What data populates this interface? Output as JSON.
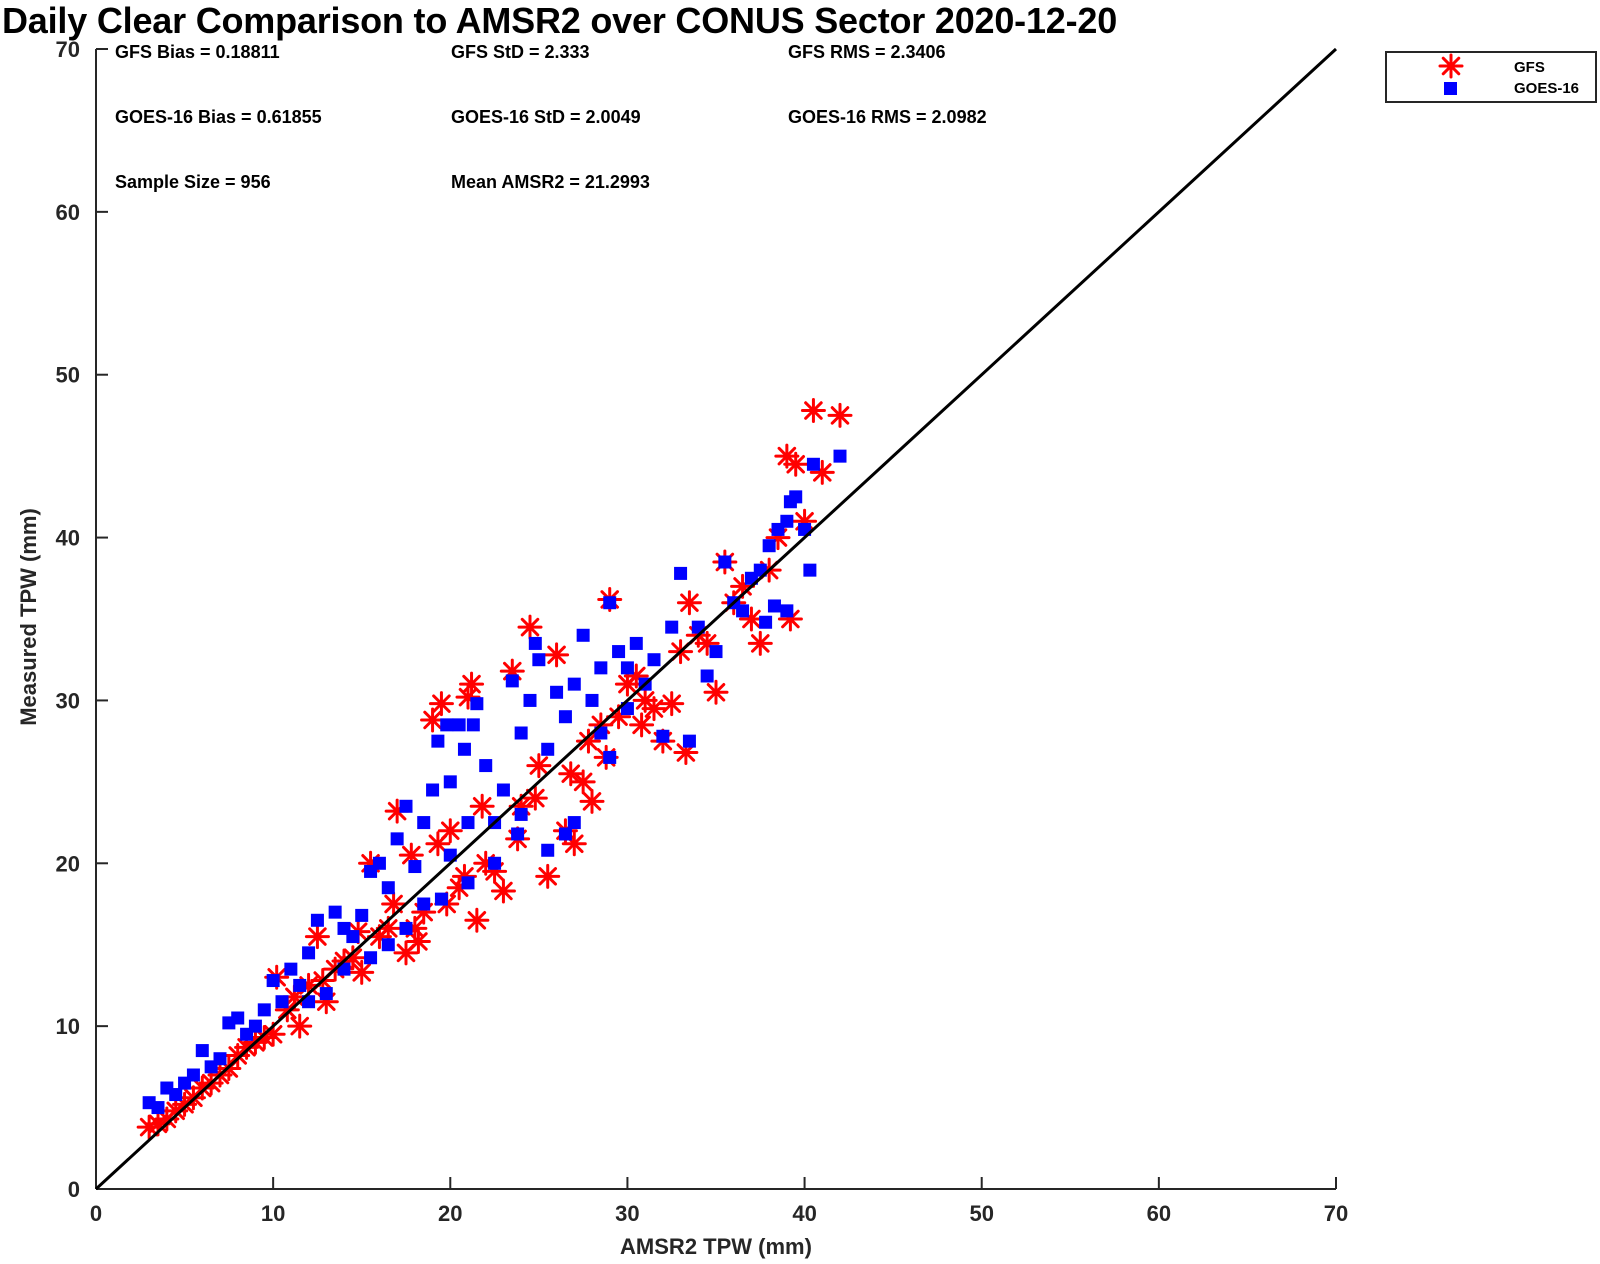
{
  "chart_data": {
    "type": "scatter",
    "title": "Daily Clear Comparison to AMSR2 over CONUS Sector 2020-12-20",
    "xlabel": "AMSR2 TPW (mm)",
    "ylabel": "Measured TPW (mm)",
    "xlim": [
      0,
      70
    ],
    "ylim": [
      0,
      70
    ],
    "xticks": [
      "0",
      "10",
      "20",
      "30",
      "40",
      "50",
      "60",
      "70"
    ],
    "yticks": [
      "0",
      "10",
      "20",
      "30",
      "40",
      "50",
      "60",
      "70"
    ],
    "reference_line": {
      "x": [
        0,
        70
      ],
      "y": [
        0,
        70
      ],
      "color": "#000000"
    },
    "stats": [
      [
        "GFS Bias = 0.18811",
        "GFS StD = 2.333",
        "GFS RMS = 2.3406"
      ],
      [
        "GOES-16 Bias = 0.61855",
        "GOES-16 StD = 2.0049",
        "GOES-16 RMS = 2.0982"
      ],
      [
        "Sample Size = 956",
        "Mean AMSR2 = 21.2993",
        ""
      ]
    ],
    "legend_position": "outside top-right",
    "series": [
      {
        "name": "GFS",
        "marker": "asterisk",
        "color": "#ff0000",
        "points": [
          [
            3.0,
            3.8
          ],
          [
            3.5,
            4.0
          ],
          [
            4.0,
            4.3
          ],
          [
            4.5,
            4.8
          ],
          [
            5.0,
            5.2
          ],
          [
            5.5,
            5.6
          ],
          [
            6.0,
            6.2
          ],
          [
            6.5,
            6.5
          ],
          [
            7.0,
            7.0
          ],
          [
            7.5,
            7.4
          ],
          [
            8.0,
            8.2
          ],
          [
            8.5,
            8.7
          ],
          [
            9.0,
            9.0
          ],
          [
            9.5,
            9.3
          ],
          [
            10.0,
            9.5
          ],
          [
            10.2,
            13.0
          ],
          [
            10.8,
            11.0
          ],
          [
            11.5,
            10.0
          ],
          [
            12.0,
            12.5
          ],
          [
            12.5,
            15.5
          ],
          [
            13.0,
            11.5
          ],
          [
            13.5,
            13.5
          ],
          [
            14.0,
            14.0
          ],
          [
            14.5,
            14.2
          ],
          [
            15.0,
            13.3
          ],
          [
            15.5,
            20.0
          ],
          [
            16.0,
            15.5
          ],
          [
            16.5,
            16.0
          ],
          [
            17.0,
            23.2
          ],
          [
            17.5,
            14.5
          ],
          [
            18.0,
            16.0
          ],
          [
            18.5,
            17.0
          ],
          [
            19.0,
            28.8
          ],
          [
            19.5,
            29.8
          ],
          [
            20.0,
            22.0
          ],
          [
            20.5,
            18.5
          ],
          [
            21.0,
            30.2
          ],
          [
            21.2,
            31.0
          ],
          [
            21.5,
            16.5
          ],
          [
            22.0,
            20.0
          ],
          [
            22.5,
            19.5
          ],
          [
            23.0,
            18.3
          ],
          [
            23.5,
            31.8
          ],
          [
            24.0,
            23.5
          ],
          [
            24.5,
            34.5
          ],
          [
            25.0,
            26.0
          ],
          [
            25.5,
            19.2
          ],
          [
            26.0,
            32.8
          ],
          [
            26.5,
            22.0
          ],
          [
            27.0,
            21.2
          ],
          [
            27.5,
            25.0
          ],
          [
            28.0,
            23.8
          ],
          [
            28.5,
            28.5
          ],
          [
            29.0,
            36.2
          ],
          [
            29.5,
            29.0
          ],
          [
            30.0,
            31.0
          ],
          [
            30.5,
            31.5
          ],
          [
            31.0,
            30.0
          ],
          [
            31.5,
            29.5
          ],
          [
            32.0,
            27.5
          ],
          [
            32.5,
            29.8
          ],
          [
            33.0,
            33.0
          ],
          [
            33.3,
            26.8
          ],
          [
            33.5,
            36.0
          ],
          [
            34.0,
            34.0
          ],
          [
            34.5,
            33.5
          ],
          [
            35.0,
            30.5
          ],
          [
            35.5,
            38.5
          ],
          [
            36.0,
            36.0
          ],
          [
            36.5,
            37.0
          ],
          [
            37.0,
            35.0
          ],
          [
            37.5,
            33.5
          ],
          [
            38.0,
            38.0
          ],
          [
            38.5,
            40.0
          ],
          [
            39.0,
            45.0
          ],
          [
            39.2,
            35.0
          ],
          [
            39.5,
            44.5
          ],
          [
            40.0,
            41.0
          ],
          [
            40.5,
            47.8
          ],
          [
            41.0,
            44.0
          ],
          [
            42.0,
            47.5
          ],
          [
            18.2,
            15.2
          ],
          [
            19.8,
            17.5
          ],
          [
            20.8,
            19.2
          ],
          [
            23.8,
            21.5
          ],
          [
            24.8,
            24.0
          ],
          [
            26.8,
            25.5
          ],
          [
            27.8,
            27.5
          ],
          [
            28.8,
            26.5
          ],
          [
            30.8,
            28.5
          ],
          [
            16.8,
            17.5
          ],
          [
            14.8,
            15.8
          ],
          [
            12.8,
            12.8
          ],
          [
            11.2,
            11.8
          ],
          [
            21.8,
            23.5
          ],
          [
            19.3,
            21.2
          ],
          [
            17.8,
            20.5
          ]
        ]
      },
      {
        "name": "GOES-16",
        "marker": "square",
        "color": "#0000ff",
        "points": [
          [
            3.0,
            5.3
          ],
          [
            3.5,
            5.0
          ],
          [
            4.0,
            6.2
          ],
          [
            4.5,
            5.8
          ],
          [
            5.0,
            6.5
          ],
          [
            5.5,
            7.0
          ],
          [
            6.0,
            8.5
          ],
          [
            6.5,
            7.5
          ],
          [
            7.0,
            8.0
          ],
          [
            7.5,
            10.2
          ],
          [
            8.0,
            10.5
          ],
          [
            8.5,
            9.5
          ],
          [
            9.0,
            10.0
          ],
          [
            9.5,
            11.0
          ],
          [
            10.0,
            12.8
          ],
          [
            10.5,
            11.5
          ],
          [
            11.0,
            13.5
          ],
          [
            11.5,
            12.5
          ],
          [
            12.0,
            14.5
          ],
          [
            12.5,
            16.5
          ],
          [
            13.0,
            12.0
          ],
          [
            13.5,
            17.0
          ],
          [
            14.0,
            16.0
          ],
          [
            14.5,
            15.5
          ],
          [
            15.0,
            16.8
          ],
          [
            15.5,
            19.5
          ],
          [
            16.0,
            20.0
          ],
          [
            16.5,
            18.5
          ],
          [
            17.0,
            21.5
          ],
          [
            17.5,
            23.5
          ],
          [
            18.0,
            19.8
          ],
          [
            18.5,
            22.5
          ],
          [
            19.0,
            24.5
          ],
          [
            19.3,
            27.5
          ],
          [
            19.8,
            28.5
          ],
          [
            20.0,
            25.0
          ],
          [
            20.5,
            28.5
          ],
          [
            20.8,
            27.0
          ],
          [
            21.0,
            22.5
          ],
          [
            21.3,
            28.5
          ],
          [
            21.5,
            29.8
          ],
          [
            22.0,
            26.0
          ],
          [
            22.5,
            22.5
          ],
          [
            23.0,
            24.5
          ],
          [
            23.5,
            31.2
          ],
          [
            24.0,
            28.0
          ],
          [
            24.5,
            30.0
          ],
          [
            24.8,
            33.5
          ],
          [
            25.0,
            32.5
          ],
          [
            25.5,
            27.0
          ],
          [
            26.0,
            30.5
          ],
          [
            26.5,
            29.0
          ],
          [
            27.0,
            31.0
          ],
          [
            27.5,
            34.0
          ],
          [
            28.0,
            30.0
          ],
          [
            28.5,
            32.0
          ],
          [
            29.0,
            36.0
          ],
          [
            29.5,
            33.0
          ],
          [
            30.0,
            32.0
          ],
          [
            30.5,
            33.5
          ],
          [
            31.0,
            31.0
          ],
          [
            31.5,
            32.5
          ],
          [
            32.0,
            27.8
          ],
          [
            32.5,
            34.5
          ],
          [
            33.0,
            37.8
          ],
          [
            33.5,
            27.5
          ],
          [
            34.0,
            34.5
          ],
          [
            34.5,
            31.5
          ],
          [
            35.0,
            33.0
          ],
          [
            35.5,
            38.5
          ],
          [
            36.0,
            36.0
          ],
          [
            36.5,
            35.5
          ],
          [
            37.0,
            37.5
          ],
          [
            37.5,
            38.0
          ],
          [
            38.0,
            39.5
          ],
          [
            38.5,
            40.5
          ],
          [
            39.0,
            41.0
          ],
          [
            39.2,
            42.2
          ],
          [
            39.5,
            42.5
          ],
          [
            40.0,
            40.5
          ],
          [
            40.3,
            38.0
          ],
          [
            40.5,
            44.5
          ],
          [
            42.0,
            45.0
          ],
          [
            39.0,
            35.5
          ],
          [
            38.3,
            35.8
          ],
          [
            37.8,
            34.8
          ],
          [
            26.5,
            21.8
          ],
          [
            27.0,
            22.5
          ],
          [
            25.5,
            20.8
          ],
          [
            22.5,
            20.0
          ],
          [
            23.8,
            21.8
          ],
          [
            21.0,
            18.8
          ],
          [
            19.5,
            17.8
          ],
          [
            18.5,
            17.5
          ],
          [
            17.5,
            16.0
          ],
          [
            16.5,
            15.0
          ],
          [
            15.5,
            14.2
          ],
          [
            14.0,
            13.5
          ],
          [
            12.0,
            11.5
          ],
          [
            28.5,
            28.0
          ],
          [
            30.0,
            29.5
          ],
          [
            24.0,
            23.0
          ],
          [
            20.0,
            20.5
          ],
          [
            29.0,
            26.5
          ]
        ]
      }
    ]
  }
}
